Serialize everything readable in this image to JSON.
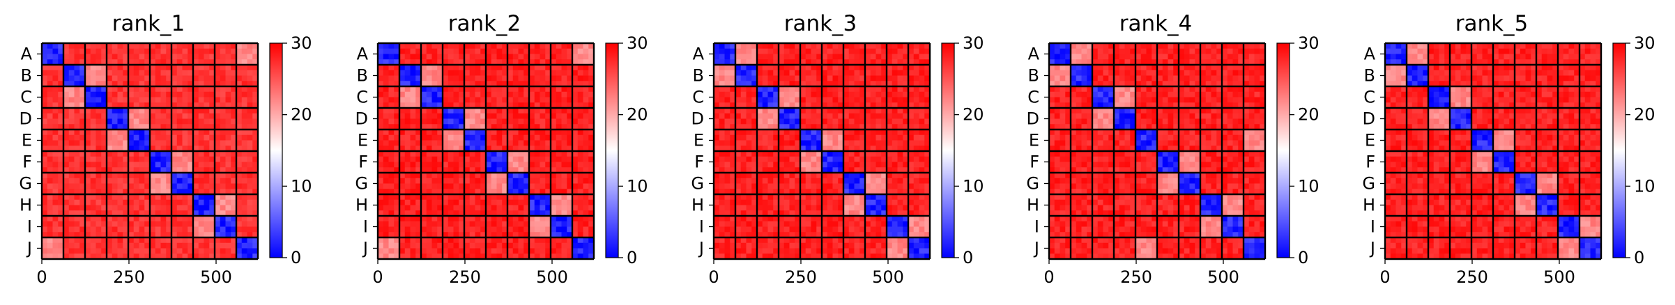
{
  "chart_data": [
    {
      "type": "heatmap",
      "title": "rank_1",
      "row_labels": [
        "A",
        "B",
        "C",
        "D",
        "E",
        "F",
        "G",
        "H",
        "I",
        "J"
      ],
      "x_ticks": [
        "0",
        "250",
        "500"
      ],
      "x_tick_values": [
        0,
        250,
        500
      ],
      "x_range": [
        0,
        620
      ],
      "colorbar": {
        "colormap": "bwr",
        "range": [
          0,
          30
        ],
        "ticks": [
          "0",
          "10",
          "20",
          "30"
        ],
        "tick_values": [
          0,
          10,
          20,
          30
        ]
      },
      "block_pairs_similar": [
        [
          0,
          0
        ],
        [
          1,
          1
        ],
        [
          1,
          2
        ],
        [
          2,
          2
        ],
        [
          3,
          3
        ],
        [
          3,
          4
        ],
        [
          4,
          4
        ],
        [
          5,
          5
        ],
        [
          5,
          6
        ],
        [
          6,
          6
        ],
        [
          7,
          7
        ],
        [
          7,
          8
        ],
        [
          8,
          8
        ],
        [
          9,
          9
        ],
        [
          0,
          9
        ]
      ],
      "values": [
        [
          2,
          27,
          27,
          27,
          27,
          27,
          27,
          27,
          27,
          22
        ],
        [
          27,
          2,
          22,
          27,
          27,
          27,
          27,
          27,
          27,
          27
        ],
        [
          27,
          22,
          2,
          27,
          27,
          27,
          27,
          27,
          27,
          27
        ],
        [
          27,
          27,
          27,
          2,
          22,
          27,
          27,
          27,
          27,
          27
        ],
        [
          27,
          27,
          27,
          22,
          2,
          27,
          27,
          27,
          27,
          27
        ],
        [
          27,
          27,
          27,
          27,
          27,
          2,
          22,
          27,
          27,
          27
        ],
        [
          27,
          27,
          27,
          27,
          27,
          22,
          2,
          27,
          27,
          27
        ],
        [
          27,
          27,
          27,
          27,
          27,
          27,
          27,
          2,
          22,
          27
        ],
        [
          27,
          27,
          27,
          27,
          27,
          27,
          27,
          22,
          2,
          27
        ],
        [
          22,
          27,
          27,
          27,
          27,
          27,
          27,
          27,
          27,
          2
        ]
      ]
    },
    {
      "type": "heatmap",
      "title": "rank_2",
      "row_labels": [
        "A",
        "B",
        "C",
        "D",
        "E",
        "F",
        "G",
        "H",
        "I",
        "J"
      ],
      "x_ticks": [
        "0",
        "250",
        "500"
      ],
      "x_tick_values": [
        0,
        250,
        500
      ],
      "x_range": [
        0,
        620
      ],
      "colorbar": {
        "colormap": "bwr",
        "range": [
          0,
          30
        ],
        "ticks": [
          "0",
          "10",
          "20",
          "30"
        ],
        "tick_values": [
          0,
          10,
          20,
          30
        ]
      },
      "block_pairs_similar": [
        [
          0,
          0
        ],
        [
          1,
          1
        ],
        [
          1,
          2
        ],
        [
          2,
          2
        ],
        [
          3,
          3
        ],
        [
          3,
          4
        ],
        [
          4,
          4
        ],
        [
          5,
          5
        ],
        [
          5,
          6
        ],
        [
          6,
          6
        ],
        [
          7,
          7
        ],
        [
          7,
          8
        ],
        [
          8,
          8
        ],
        [
          9,
          9
        ],
        [
          0,
          9
        ]
      ],
      "values": [
        [
          2,
          28,
          28,
          28,
          28,
          28,
          28,
          28,
          28,
          22
        ],
        [
          28,
          2,
          22,
          28,
          28,
          28,
          28,
          28,
          28,
          28
        ],
        [
          28,
          22,
          2,
          28,
          28,
          28,
          28,
          28,
          28,
          28
        ],
        [
          28,
          28,
          28,
          2,
          22,
          28,
          28,
          28,
          28,
          28
        ],
        [
          28,
          28,
          28,
          22,
          2,
          28,
          28,
          28,
          28,
          28
        ],
        [
          28,
          28,
          28,
          28,
          28,
          2,
          22,
          28,
          28,
          28
        ],
        [
          28,
          28,
          28,
          28,
          28,
          22,
          2,
          28,
          28,
          28
        ],
        [
          28,
          28,
          28,
          28,
          28,
          28,
          28,
          2,
          22,
          28
        ],
        [
          28,
          28,
          28,
          28,
          28,
          28,
          28,
          22,
          2,
          28
        ],
        [
          22,
          28,
          28,
          28,
          28,
          28,
          28,
          28,
          28,
          2
        ]
      ]
    },
    {
      "type": "heatmap",
      "title": "rank_3",
      "row_labels": [
        "A",
        "B",
        "C",
        "D",
        "E",
        "F",
        "G",
        "H",
        "I",
        "J"
      ],
      "x_ticks": [
        "0",
        "250",
        "500"
      ],
      "x_tick_values": [
        0,
        250,
        500
      ],
      "x_range": [
        0,
        620
      ],
      "colorbar": {
        "colormap": "bwr",
        "range": [
          0,
          30
        ],
        "ticks": [
          "0",
          "10",
          "20",
          "30"
        ],
        "tick_values": [
          0,
          10,
          20,
          30
        ]
      },
      "block_pairs_similar": [
        [
          0,
          0
        ],
        [
          0,
          1
        ],
        [
          1,
          1
        ],
        [
          2,
          2
        ],
        [
          2,
          3
        ],
        [
          3,
          3
        ],
        [
          4,
          4
        ],
        [
          4,
          5
        ],
        [
          5,
          5
        ],
        [
          6,
          6
        ],
        [
          6,
          7
        ],
        [
          7,
          7
        ],
        [
          8,
          8
        ],
        [
          8,
          9
        ],
        [
          9,
          9
        ]
      ],
      "values": [
        [
          2,
          22,
          28,
          28,
          28,
          28,
          28,
          28,
          28,
          28
        ],
        [
          22,
          2,
          28,
          28,
          28,
          28,
          28,
          28,
          28,
          28
        ],
        [
          28,
          28,
          2,
          22,
          28,
          28,
          28,
          28,
          28,
          28
        ],
        [
          28,
          28,
          22,
          2,
          28,
          28,
          28,
          28,
          28,
          28
        ],
        [
          28,
          28,
          28,
          28,
          2,
          22,
          28,
          28,
          28,
          28
        ],
        [
          28,
          28,
          28,
          28,
          22,
          2,
          28,
          28,
          28,
          28
        ],
        [
          28,
          28,
          28,
          28,
          28,
          28,
          2,
          22,
          28,
          28
        ],
        [
          28,
          28,
          28,
          28,
          28,
          28,
          22,
          2,
          28,
          28
        ],
        [
          28,
          28,
          28,
          28,
          28,
          28,
          28,
          28,
          2,
          22
        ],
        [
          28,
          28,
          28,
          28,
          28,
          28,
          28,
          28,
          22,
          2
        ]
      ]
    },
    {
      "type": "heatmap",
      "title": "rank_4",
      "row_labels": [
        "A",
        "B",
        "C",
        "D",
        "E",
        "F",
        "G",
        "H",
        "I",
        "J"
      ],
      "x_ticks": [
        "0",
        "250",
        "500"
      ],
      "x_tick_values": [
        0,
        250,
        500
      ],
      "x_range": [
        0,
        620
      ],
      "colorbar": {
        "colormap": "bwr",
        "range": [
          0,
          30
        ],
        "ticks": [
          "0",
          "10",
          "20",
          "30"
        ],
        "tick_values": [
          0,
          10,
          20,
          30
        ]
      },
      "block_pairs_similar": [
        [
          0,
          0
        ],
        [
          0,
          1
        ],
        [
          1,
          1
        ],
        [
          2,
          2
        ],
        [
          2,
          3
        ],
        [
          3,
          3
        ],
        [
          4,
          4
        ],
        [
          4,
          9
        ],
        [
          9,
          9
        ],
        [
          5,
          5
        ],
        [
          5,
          6
        ],
        [
          6,
          6
        ],
        [
          7,
          7
        ],
        [
          7,
          8
        ],
        [
          8,
          8
        ]
      ],
      "values": [
        [
          2,
          22,
          28,
          28,
          28,
          28,
          28,
          28,
          28,
          28
        ],
        [
          22,
          2,
          28,
          28,
          28,
          28,
          28,
          28,
          28,
          28
        ],
        [
          28,
          28,
          2,
          22,
          28,
          28,
          28,
          28,
          28,
          28
        ],
        [
          28,
          28,
          22,
          2,
          28,
          28,
          28,
          28,
          28,
          28
        ],
        [
          28,
          28,
          28,
          28,
          2,
          28,
          28,
          28,
          28,
          22
        ],
        [
          28,
          28,
          28,
          28,
          28,
          2,
          22,
          28,
          28,
          28
        ],
        [
          28,
          28,
          28,
          28,
          28,
          22,
          2,
          28,
          28,
          28
        ],
        [
          28,
          28,
          28,
          28,
          28,
          28,
          28,
          2,
          22,
          28
        ],
        [
          28,
          28,
          28,
          28,
          28,
          28,
          28,
          22,
          2,
          28
        ],
        [
          28,
          28,
          28,
          28,
          22,
          28,
          28,
          28,
          28,
          2
        ]
      ]
    },
    {
      "type": "heatmap",
      "title": "rank_5",
      "row_labels": [
        "A",
        "B",
        "C",
        "D",
        "E",
        "F",
        "G",
        "H",
        "I",
        "J"
      ],
      "x_ticks": [
        "0",
        "250",
        "500"
      ],
      "x_tick_values": [
        0,
        250,
        500
      ],
      "x_range": [
        0,
        620
      ],
      "colorbar": {
        "colormap": "bwr",
        "range": [
          0,
          30
        ],
        "ticks": [
          "0",
          "10",
          "20",
          "30"
        ],
        "tick_values": [
          0,
          10,
          20,
          30
        ]
      },
      "block_pairs_similar": [
        [
          0,
          0
        ],
        [
          0,
          1
        ],
        [
          1,
          1
        ],
        [
          2,
          2
        ],
        [
          2,
          3
        ],
        [
          3,
          3
        ],
        [
          4,
          4
        ],
        [
          4,
          5
        ],
        [
          5,
          5
        ],
        [
          6,
          6
        ],
        [
          6,
          7
        ],
        [
          7,
          7
        ],
        [
          8,
          8
        ],
        [
          8,
          9
        ],
        [
          9,
          9
        ]
      ],
      "values": [
        [
          2,
          22,
          28,
          28,
          28,
          28,
          28,
          28,
          28,
          28
        ],
        [
          22,
          2,
          28,
          28,
          28,
          28,
          28,
          28,
          28,
          28
        ],
        [
          28,
          28,
          2,
          22,
          28,
          28,
          28,
          28,
          28,
          28
        ],
        [
          28,
          28,
          22,
          2,
          28,
          28,
          28,
          28,
          28,
          28
        ],
        [
          28,
          28,
          28,
          28,
          2,
          22,
          28,
          28,
          28,
          28
        ],
        [
          28,
          28,
          28,
          28,
          22,
          2,
          28,
          28,
          28,
          28
        ],
        [
          28,
          28,
          28,
          28,
          28,
          28,
          2,
          22,
          28,
          28
        ],
        [
          28,
          28,
          28,
          28,
          28,
          28,
          22,
          2,
          28,
          28
        ],
        [
          28,
          28,
          28,
          28,
          28,
          28,
          28,
          28,
          2,
          22
        ],
        [
          28,
          28,
          28,
          28,
          28,
          28,
          28,
          28,
          22,
          2
        ]
      ]
    }
  ]
}
